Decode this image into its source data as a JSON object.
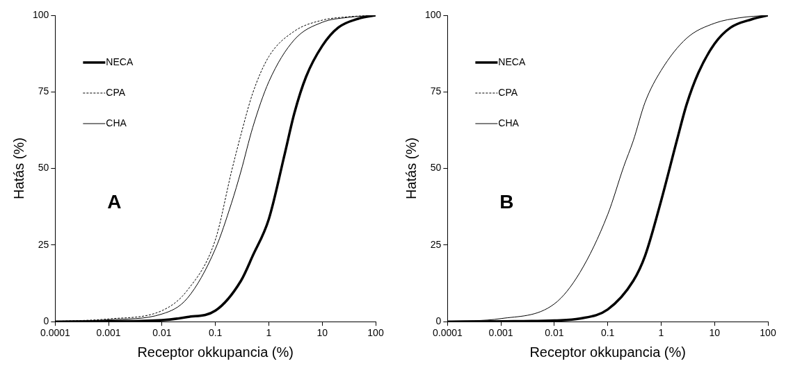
{
  "chart_data": [
    {
      "type": "line",
      "xlabel": "Receptor okkupancia (%)",
      "ylabel": "Hatás (%)",
      "log": "x",
      "xlim": [
        0.0001,
        100
      ],
      "xticks": [
        0.0001,
        0.001,
        0.01,
        0.1,
        1,
        10,
        100
      ],
      "ylim": [
        0,
        100
      ],
      "yticks": [
        0,
        25,
        50,
        75,
        100
      ],
      "grid": false,
      "legend": "top left",
      "marker": "none",
      "annotations": [
        "A"
      ],
      "series": [
        {
          "name": "NECA",
          "color": "#000000",
          "line_style": "solid",
          "x": [
            0.0001,
            0.001,
            0.01,
            0.03,
            0.1,
            0.3,
            0.5,
            1,
            2,
            3,
            5,
            10,
            20,
            50,
            100
          ],
          "values": [
            0,
            0.1,
            0.5,
            1.5,
            3.6,
            13.3,
            21.5,
            33.5,
            55,
            68,
            80,
            90,
            96,
            99,
            100
          ]
        },
        {
          "name": "CPA",
          "color": "#000000",
          "line_style": "dashed",
          "x": [
            0.0001,
            0.001,
            0.01,
            0.03,
            0.1,
            0.2,
            0.3,
            0.5,
            1,
            3,
            10,
            30,
            100
          ],
          "values": [
            0.1,
            0.9,
            3.6,
            10.3,
            26.8,
            49,
            61,
            74.6,
            86.5,
            94.8,
            98.4,
            99.5,
            100
          ]
        },
        {
          "name": "CHA",
          "color": "#000000",
          "line_style": "solid",
          "x": [
            0.0001,
            0.001,
            0.01,
            0.03,
            0.1,
            0.2,
            0.3,
            0.5,
            1,
            3,
            10,
            30,
            100
          ],
          "values": [
            0.1,
            0.6,
            2.5,
            7.7,
            23.8,
            38.7,
            49,
            63.4,
            78.3,
            92,
            97.7,
            99.3,
            100
          ]
        }
      ]
    },
    {
      "type": "line",
      "xlabel": "Receptor okkupancia (%)",
      "ylabel": "Hatás (%)",
      "log": "x",
      "xlim": [
        0.0001,
        100
      ],
      "xticks": [
        0.0001,
        0.001,
        0.01,
        0.1,
        1,
        10,
        100
      ],
      "ylim": [
        0,
        100
      ],
      "yticks": [
        0,
        25,
        50,
        75,
        100
      ],
      "grid": false,
      "legend": "top left",
      "marker": "none",
      "annotations": [
        "B"
      ],
      "series": [
        {
          "name": "NECA",
          "color": "#000000",
          "line_style": "solid",
          "x": [
            0.0001,
            0.001,
            0.01,
            0.03,
            0.1,
            0.3,
            0.5,
            1,
            2,
            3,
            5,
            10,
            20,
            50,
            100
          ],
          "values": [
            0,
            0.1,
            0.4,
            1,
            4,
            13.3,
            21.5,
            39.5,
            59.6,
            70.9,
            81.3,
            90.7,
            96,
            98.7,
            100
          ]
        },
        {
          "name": "CPA",
          "color": "#000000",
          "line_style": "dashed"
        },
        {
          "name": "CHA",
          "color": "#000000",
          "line_style": "solid",
          "x": [
            0.0001,
            0.001,
            0.01,
            0.03,
            0.1,
            0.2,
            0.3,
            0.5,
            1,
            3,
            10,
            30,
            100
          ],
          "values": [
            0.1,
            1,
            5.8,
            16,
            35,
            50.7,
            59,
            71.6,
            82,
            92.5,
            97.4,
            99.2,
            100
          ]
        }
      ]
    }
  ]
}
